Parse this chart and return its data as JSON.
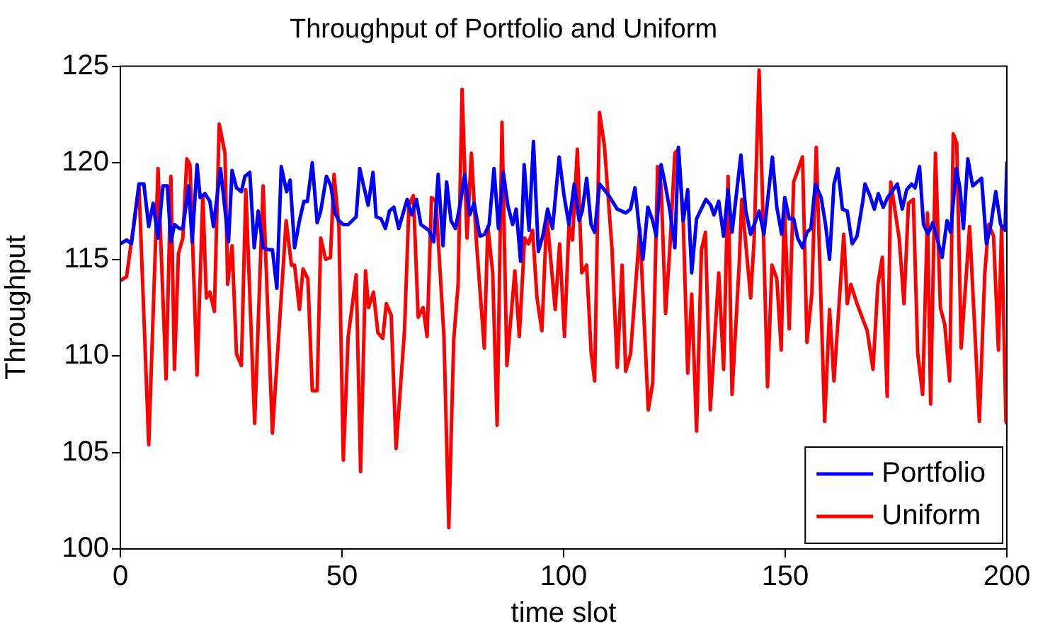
{
  "chart_data": {
    "type": "line",
    "title": "Throughput of Portfolio and Uniform",
    "xlabel": "time slot",
    "ylabel": "Throughput",
    "xlim": [
      0,
      200
    ],
    "xticks": [
      0,
      50,
      100,
      150,
      200
    ],
    "ylim": [
      100,
      125
    ],
    "yticks": [
      100,
      105,
      110,
      115,
      120,
      125
    ],
    "grid": false,
    "legend": "bottom right",
    "marker": "none",
    "line_style": "solid",
    "series": [
      {
        "name": "Portfolio",
        "color": "#0000ff",
        "x": [
          0,
          1.4,
          2.5,
          4.2,
          5.3,
          6.4,
          7.4,
          8.5,
          9.6,
          10.6,
          11.4,
          12.2,
          13.3,
          14.1,
          15.4,
          16.2,
          17.3,
          18,
          19.1,
          20.2,
          21,
          22.6,
          24.4,
          25.2,
          26.2,
          27.3,
          28.1,
          29.2,
          30.2,
          31.1,
          32.2,
          33.4,
          34.3,
          35.3,
          36.3,
          37.5,
          38.3,
          39.3,
          40.4,
          41.4,
          42.2,
          43.3,
          44.4,
          45.2,
          46.5,
          47.5,
          48.4,
          49.3,
          50.3,
          51.4,
          53.2,
          54,
          55.9,
          57,
          57.7,
          58.8,
          59.8,
          60.7,
          61.7,
          62.8,
          64.7,
          65.7,
          66.8,
          67.8,
          69.6,
          70.7,
          71.7,
          72.8,
          73.6,
          74.6,
          75.6,
          76.7,
          77.7,
          78.8,
          79.8,
          81.1,
          82.2,
          83.2,
          84.3,
          85.3,
          86.4,
          87.4,
          88.5,
          89.3,
          90.3,
          91.1,
          92.2,
          93.2,
          94.3,
          95.3,
          96.4,
          97.5,
          99,
          100.1,
          101.2,
          102.4,
          103.5,
          104.2,
          105.2,
          106.2,
          107,
          108.1,
          109.2,
          110.2,
          112.1,
          114,
          115.1,
          116.1,
          117.2,
          117.9,
          119,
          120.1,
          120.9,
          122,
          122.9,
          124,
          125.1,
          125.9,
          127,
          128,
          128.9,
          130,
          132.1,
          133.2,
          133.9,
          135,
          136.1,
          137.1,
          138,
          140,
          141.1,
          142.2,
          144.1,
          145.2,
          147.1,
          148.1,
          149.2,
          149.9,
          150.9,
          151.9,
          152.8,
          153.9,
          154.9,
          155.8,
          156.8,
          158.1,
          159.1,
          160,
          161,
          161.9,
          162.9,
          164,
          165.1,
          166.2,
          167.5,
          168,
          169.1,
          170.1,
          171,
          172.1,
          173.1,
          175.3,
          176.4,
          177.4,
          178.5,
          179.3,
          180.3,
          181.2,
          182.2,
          183.3,
          185.4,
          186.5,
          187.3,
          188.6,
          189.4,
          190.2,
          191.2,
          192.3,
          194.3,
          195.4,
          196.4,
          197.5,
          198.6,
          199.6,
          200
        ],
        "values": [
          115.8,
          116,
          115.8,
          118.9,
          118.9,
          116.7,
          117.9,
          116.1,
          118.8,
          118.8,
          115.9,
          116.8,
          116.6,
          116.6,
          118.8,
          115.9,
          119.9,
          118.2,
          118.4,
          118,
          116.7,
          119.7,
          115.9,
          119.6,
          118.7,
          118.5,
          119.3,
          119.5,
          115.6,
          117.5,
          115.6,
          115.5,
          115.5,
          113.5,
          119.8,
          118.5,
          119.1,
          115.6,
          117,
          118,
          118,
          120,
          116.9,
          117.5,
          119.3,
          118.8,
          117.4,
          117,
          116.8,
          116.8,
          117.2,
          119.7,
          117.8,
          119.5,
          117.2,
          117.1,
          116.6,
          117.5,
          117.7,
          116.6,
          118.1,
          117.3,
          118.1,
          116.8,
          116.5,
          115.9,
          119.4,
          115.7,
          119,
          117,
          116.6,
          117.9,
          119.4,
          117.3,
          117.9,
          116.2,
          116.3,
          116.8,
          119.7,
          116.6,
          119.5,
          117.8,
          116.8,
          117.6,
          114.9,
          119.9,
          116.5,
          121.1,
          115.4,
          116.2,
          117.6,
          116.6,
          120.3,
          118.3,
          116.8,
          118.9,
          117,
          117.5,
          119.2,
          116.8,
          116.4,
          118.9,
          118.6,
          118.3,
          117.6,
          117.4,
          117.6,
          118.7,
          116.3,
          115,
          117.7,
          117,
          116.2,
          119.9,
          118.9,
          117.5,
          115.6,
          120.8,
          117,
          118.6,
          114.3,
          117.1,
          118.1,
          117.8,
          117.3,
          118,
          116.2,
          118.6,
          116.4,
          120.4,
          117.5,
          116.3,
          117.5,
          116.3,
          120.3,
          117.7,
          116.3,
          118.2,
          117.1,
          117.1,
          116.1,
          115.6,
          116.4,
          116.6,
          118.9,
          118.2,
          116.8,
          115,
          118.9,
          119.7,
          117.6,
          117.5,
          115.8,
          116.2,
          118,
          118.9,
          118.3,
          117.6,
          118.4,
          117.7,
          118.2,
          118.9,
          117.6,
          118.6,
          118.9,
          118.7,
          119.8,
          116.8,
          116.3,
          116.9,
          115.1,
          117,
          116.4,
          119.7,
          118.7,
          116.6,
          120.2,
          118.8,
          119.2,
          115.8,
          116.8,
          118.5,
          116.8,
          116.5,
          120
        ]
      },
      {
        "name": "Uniform",
        "color": "#ff0000",
        "x": [
          0,
          1.4,
          4.2,
          6.4,
          8.5,
          10.3,
          11.4,
          12.2,
          13.1,
          14.1,
          15,
          15.7,
          17.3,
          18.6,
          19.4,
          20.2,
          21.2,
          22.3,
          23.6,
          24.2,
          25.2,
          26.2,
          27.3,
          28.3,
          30.3,
          32.2,
          34.3,
          37.4,
          38.6,
          39.3,
          40.4,
          41.2,
          42.3,
          43.3,
          44.4,
          45.2,
          46.3,
          47.4,
          48.2,
          49.3,
          50.3,
          51.4,
          53.2,
          54.2,
          55.3,
          56,
          57.1,
          58.1,
          59.2,
          60,
          61.1,
          62.2,
          64.1,
          65.1,
          66.1,
          67.2,
          68.3,
          69.2,
          70.2,
          71.2,
          73,
          74.1,
          75.2,
          76.2,
          77.1,
          78.2,
          79.2,
          80.3,
          82.1,
          82.9,
          84,
          85,
          86.1,
          87.2,
          89,
          90,
          91.2,
          92.1,
          93,
          94,
          95.1,
          96.2,
          98.1,
          99.1,
          100.2,
          101.2,
          102,
          103.1,
          104.1,
          105.2,
          106.2,
          107,
          108.1,
          109.2,
          110.9,
          112.1,
          113.2,
          114,
          115.1,
          117.2,
          119.1,
          120.1,
          121.2,
          122,
          123,
          124,
          125.1,
          125.9,
          127,
          128,
          128.9,
          130,
          131.1,
          132,
          133.1,
          135,
          136.1,
          137.1,
          138,
          139.6,
          140.2,
          142.2,
          143,
          144.1,
          146,
          147,
          148.1,
          149.1,
          149.8,
          150.9,
          151.9,
          153.9,
          154.9,
          156,
          157,
          158.9,
          160,
          161,
          163.2,
          164,
          164.8,
          166.2,
          167.5,
          168.5,
          169.8,
          170.9,
          171.9,
          173,
          173.8,
          175.7,
          176.8,
          177.8,
          178.9,
          179.9,
          181,
          182.1,
          182.8,
          183.9,
          185,
          186,
          187.1,
          187.9,
          188.7,
          189.7,
          191.6,
          193.8,
          195,
          195.9,
          197,
          198.1,
          198.8,
          199.8,
          200
        ],
        "values": [
          113.9,
          114.1,
          118.8,
          105.4,
          119.7,
          108.8,
          119.3,
          109.3,
          115.3,
          116.1,
          120.2,
          119.9,
          109,
          118.3,
          113,
          113.3,
          112.3,
          122,
          120.5,
          113.7,
          115.7,
          110.1,
          109.5,
          118.6,
          106.5,
          118.8,
          106,
          117,
          114.7,
          114.7,
          112.4,
          114.5,
          114,
          108.2,
          108.2,
          116.1,
          115,
          115.1,
          119.4,
          116.7,
          104.6,
          111,
          114.2,
          104,
          114.4,
          112.5,
          113.3,
          111.2,
          110.9,
          112.7,
          112.1,
          105.2,
          111.3,
          117.8,
          118.3,
          112,
          112.5,
          111,
          118.2,
          118,
          111,
          101.1,
          110.8,
          113.7,
          123.8,
          116.1,
          120.5,
          116,
          110.4,
          116.7,
          114.3,
          106.4,
          122.1,
          109.5,
          114.4,
          111,
          116.1,
          115.8,
          116.5,
          113,
          111.3,
          117.3,
          112.4,
          115.8,
          111,
          116.7,
          116,
          120.7,
          114.3,
          114.7,
          110.2,
          108.7,
          122.6,
          120.9,
          115.6,
          109.4,
          114.7,
          109.2,
          110.1,
          116.6,
          107.2,
          108.6,
          119.8,
          118.8,
          112.2,
          115.7,
          120.5,
          120.7,
          116.8,
          109.1,
          113.2,
          106.1,
          115.5,
          116.4,
          107.2,
          114.3,
          109.3,
          119.3,
          108,
          114.7,
          118.1,
          113,
          116.1,
          124.8,
          108.4,
          114.7,
          114,
          110.3,
          117.9,
          111.4,
          119,
          120.3,
          110.7,
          113.2,
          120.8,
          106.6,
          112.4,
          108.7,
          116.3,
          112.7,
          113.7,
          112.7,
          111.9,
          111.3,
          109.3,
          113.7,
          115.1,
          107.9,
          119,
          116.1,
          112.7,
          117.9,
          118.1,
          110.1,
          108,
          117.4,
          107.5,
          120.5,
          112.5,
          111.6,
          108.7,
          121.5,
          121,
          110.4,
          116.7,
          106.6,
          114.2,
          116.8,
          116.2,
          110.3,
          116.7,
          106.6,
          106.5
        ]
      }
    ]
  }
}
